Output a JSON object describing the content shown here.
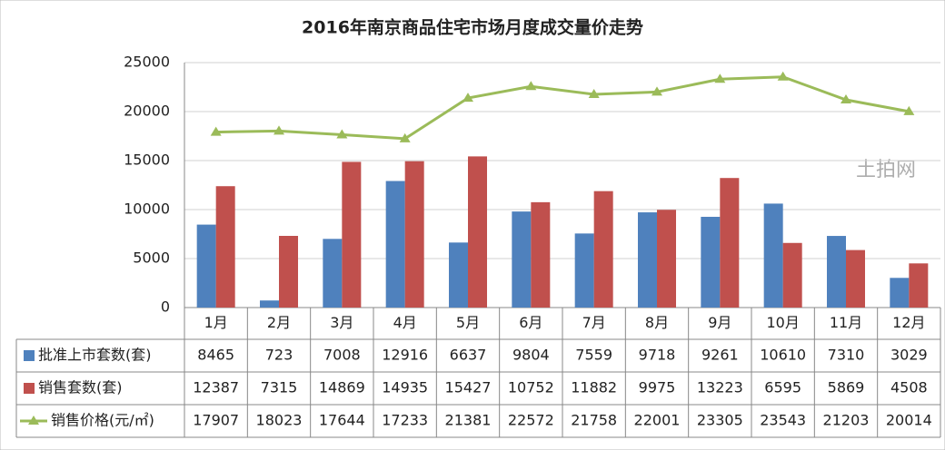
{
  "chart_data": {
    "type": "bar-line-table",
    "title": "2016年南京商品住宅市场月度成交量价走势",
    "categories": [
      "1月",
      "2月",
      "3月",
      "4月",
      "5月",
      "6月",
      "7月",
      "8月",
      "9月",
      "10月",
      "11月",
      "12月"
    ],
    "series": [
      {
        "name": "批准上市套数(套)",
        "type": "bar",
        "color": "#4f81bd",
        "values": [
          8465,
          723,
          7008,
          12916,
          6637,
          9804,
          7559,
          9718,
          9261,
          10610,
          7310,
          3029
        ]
      },
      {
        "name": "销售套数(套)",
        "type": "bar",
        "color": "#c0504d",
        "values": [
          12387,
          7315,
          14869,
          14935,
          15427,
          10752,
          11882,
          9975,
          13223,
          6595,
          5869,
          4508
        ]
      },
      {
        "name": "销售价格(元/㎡)",
        "type": "line",
        "color": "#9bbb59",
        "values": [
          17907,
          18023,
          17644,
          17233,
          21381,
          22572,
          21758,
          22001,
          23305,
          23543,
          21203,
          20014
        ]
      }
    ],
    "ylim": [
      0,
      25000
    ],
    "yticks": [
      0,
      5000,
      10000,
      15000,
      20000,
      25000
    ],
    "grid": true,
    "watermark": "土拍网"
  }
}
